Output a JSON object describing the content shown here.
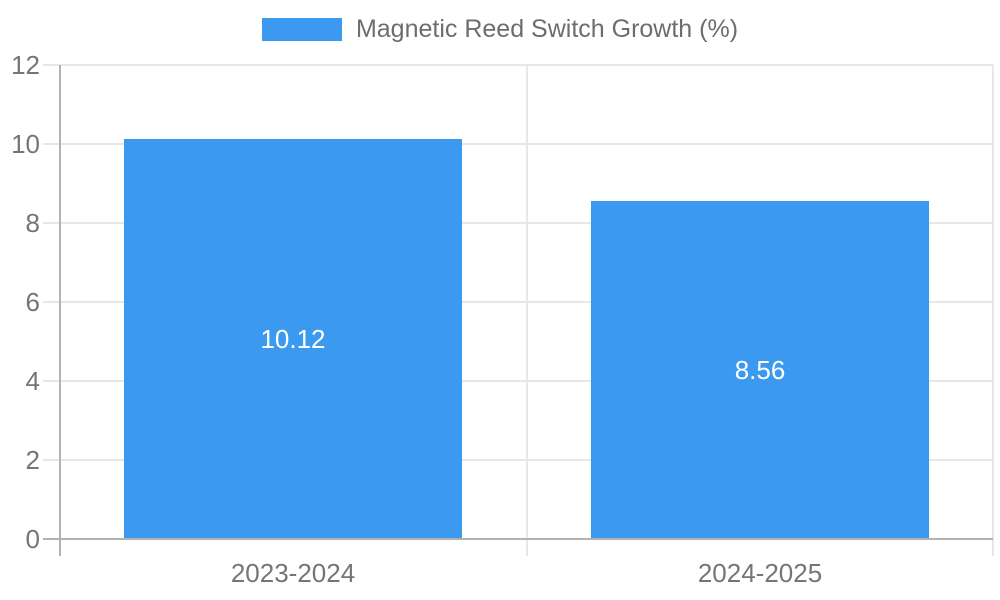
{
  "legend": {
    "label": "Magnetic Reed Switch Growth (%)"
  },
  "chart_data": {
    "type": "bar",
    "title": "",
    "categories": [
      "2023-2024",
      "2024-2025"
    ],
    "series": [
      {
        "name": "Magnetic Reed Switch Growth (%)",
        "values": [
          10.12,
          8.56
        ]
      }
    ],
    "bar_labels": [
      "10.12",
      "8.56"
    ],
    "xlabel": "",
    "ylabel": "",
    "ylim": [
      0,
      12
    ],
    "yticks": [
      0,
      2,
      4,
      6,
      8,
      10,
      12
    ],
    "grid": true,
    "legend_position": "top",
    "colors": {
      "bar": "#3b99ef",
      "grid": "#e7e7e7",
      "axis": "#b2b2b2",
      "tick_label": "#757575",
      "value_label": "#ffffff",
      "legend_text": "#6d6d6d",
      "background": "#ffffff"
    }
  }
}
